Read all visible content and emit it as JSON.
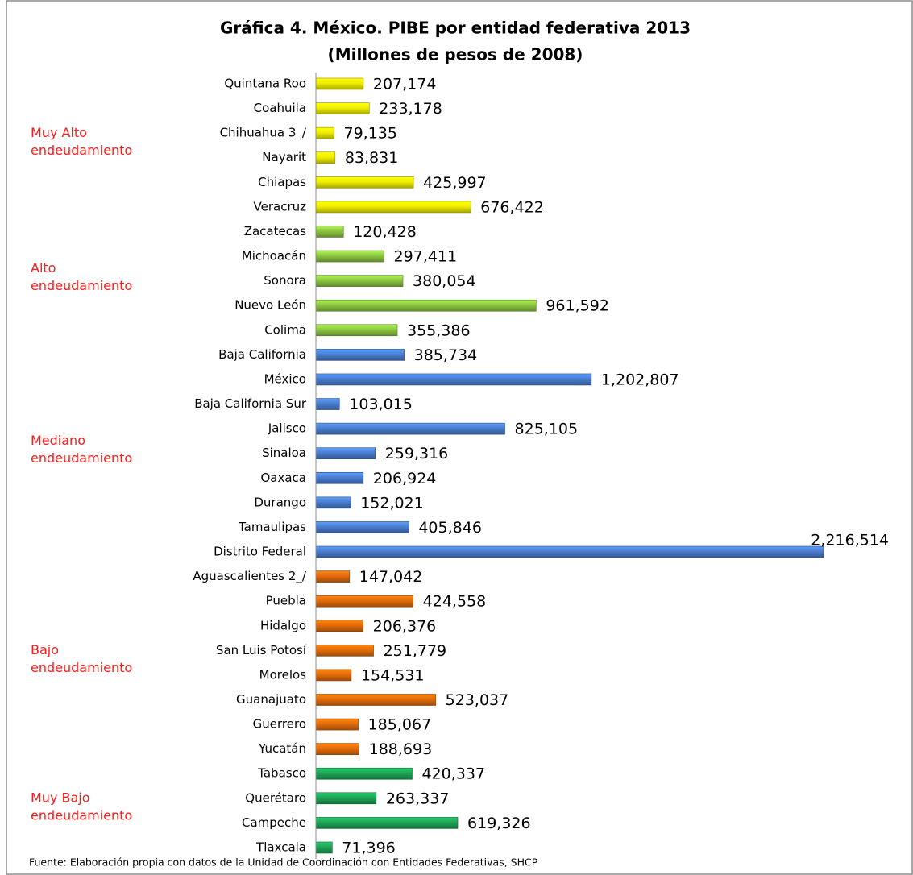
{
  "chart_data": {
    "type": "bar",
    "orientation": "horizontal",
    "title": "Gráfica 4. México. PIBE por entidad federativa 2013",
    "subtitle": "(Millones de pesos de 2008)",
    "source": "Fuente: Elaboración propia  con  datos de la Unidad de Coordinación con Entidades Federativas, SHCP",
    "groups": [
      {
        "label": [
          "Muy Alto",
          "endeudamiento"
        ],
        "color": "#f0ef00",
        "categories": [
          "Quintana Roo",
          "Coahuila",
          "Chihuahua  3_/",
          "Nayarit",
          "Chiapas",
          "Veracruz"
        ],
        "values": [
          207174,
          233178,
          79135,
          83831,
          425997,
          676422
        ],
        "value_labels": [
          "207,174",
          "233,178",
          "79,135",
          "83,831",
          "425,997",
          "676,422"
        ]
      },
      {
        "label": [
          "Alto",
          "endeudamiento"
        ],
        "color": "#8dc641",
        "categories": [
          "Zacatecas",
          "Michoacán",
          "Sonora",
          "Nuevo León",
          "Colima"
        ],
        "values": [
          120428,
          297411,
          380054,
          961592,
          355386
        ],
        "value_labels": [
          "120,428",
          "297,411",
          "380,054",
          "961,592",
          "355,386"
        ]
      },
      {
        "label": [
          "Mediano",
          "endeudamiento"
        ],
        "color": "#4a7ed0",
        "categories": [
          "Baja California",
          "México",
          "Baja California Sur",
          "Jalisco",
          "Sinaloa",
          "Oaxaca",
          "Durango",
          "Tamaulipas",
          "Distrito Federal"
        ],
        "values": [
          385734,
          1202807,
          103015,
          825105,
          259316,
          206924,
          152021,
          405846,
          2216514
        ],
        "value_labels": [
          "385,734",
          "1,202,807",
          "103,015",
          "825,105",
          "259,316",
          "206,924",
          "152,021",
          "405,846",
          "2,216,514"
        ]
      },
      {
        "label": [
          "Bajo",
          "endeudamiento"
        ],
        "color": "#e36c0b",
        "categories": [
          "Aguascalientes 2_/",
          "Puebla",
          "Hidalgo",
          "San Luis Potosí",
          "Morelos",
          "Guanajuato",
          "Guerrero",
          "Yucatán"
        ],
        "values": [
          147042,
          424558,
          206376,
          251779,
          154531,
          523037,
          185067,
          188693
        ],
        "value_labels": [
          "147,042",
          "424,558",
          "206,376",
          "251,779",
          "154,531",
          "523,037",
          "185,067",
          "188,693"
        ]
      },
      {
        "label": [
          "Muy Bajo",
          "endeudamiento"
        ],
        "color": "#1ea457",
        "categories": [
          "Tabasco",
          "Querétaro",
          "Campeche",
          "Tlaxcala"
        ],
        "values": [
          420337,
          263337,
          619326,
          71396
        ],
        "value_labels": [
          "420,337",
          "263,337",
          "619,326",
          "71,396"
        ]
      }
    ]
  }
}
